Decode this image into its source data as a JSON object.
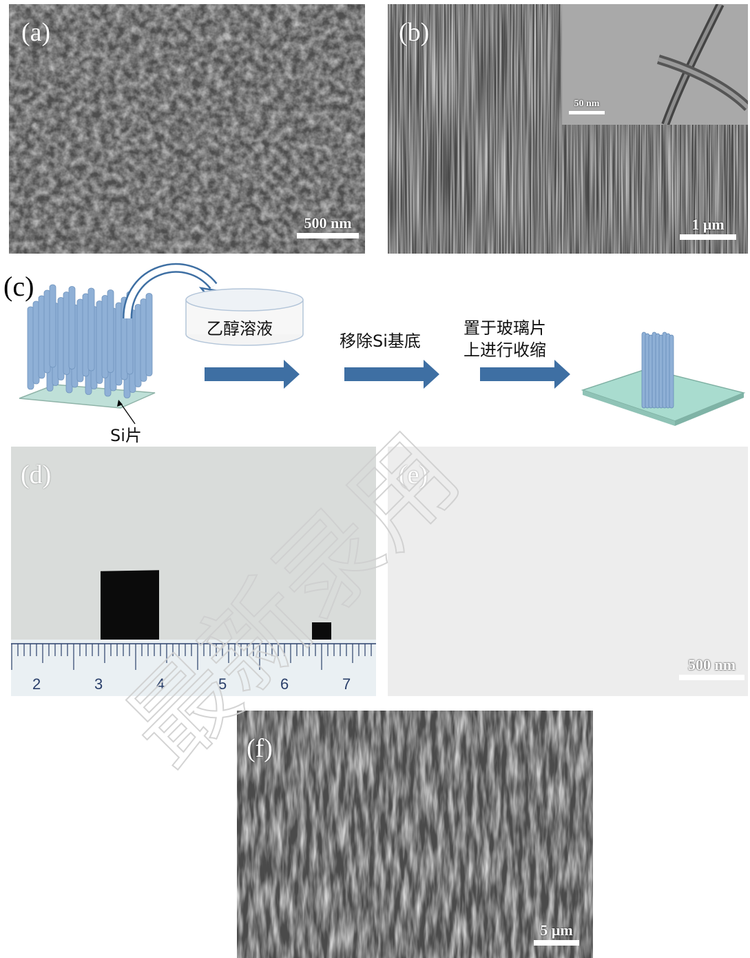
{
  "panels": {
    "a": {
      "label": "(a)",
      "scale": "500 nm"
    },
    "b": {
      "label": "(b)",
      "scale": "1 μm",
      "inset_scale": "50 nm"
    },
    "c": {
      "label": "(c)",
      "solution": "乙醇溶液",
      "step1": "移除Si基底",
      "step2_line1": "置于玻璃片",
      "step2_line2": "上进行收缩",
      "si_label": "Si片"
    },
    "d": {
      "label": "(d)",
      "ruler_numbers": [
        "2",
        "3",
        "4",
        "5",
        "6",
        "7"
      ]
    },
    "e": {
      "label": "(e)",
      "scale": "500 nm"
    },
    "f": {
      "label": "(f)",
      "scale": "5 μm"
    }
  },
  "colors": {
    "arrow": "#3e6fa3",
    "rod": "#8fb0d6",
    "substrate": "#bfe0d8",
    "sem_bg": "#5a5a5a"
  },
  "watermark": "最新录用"
}
